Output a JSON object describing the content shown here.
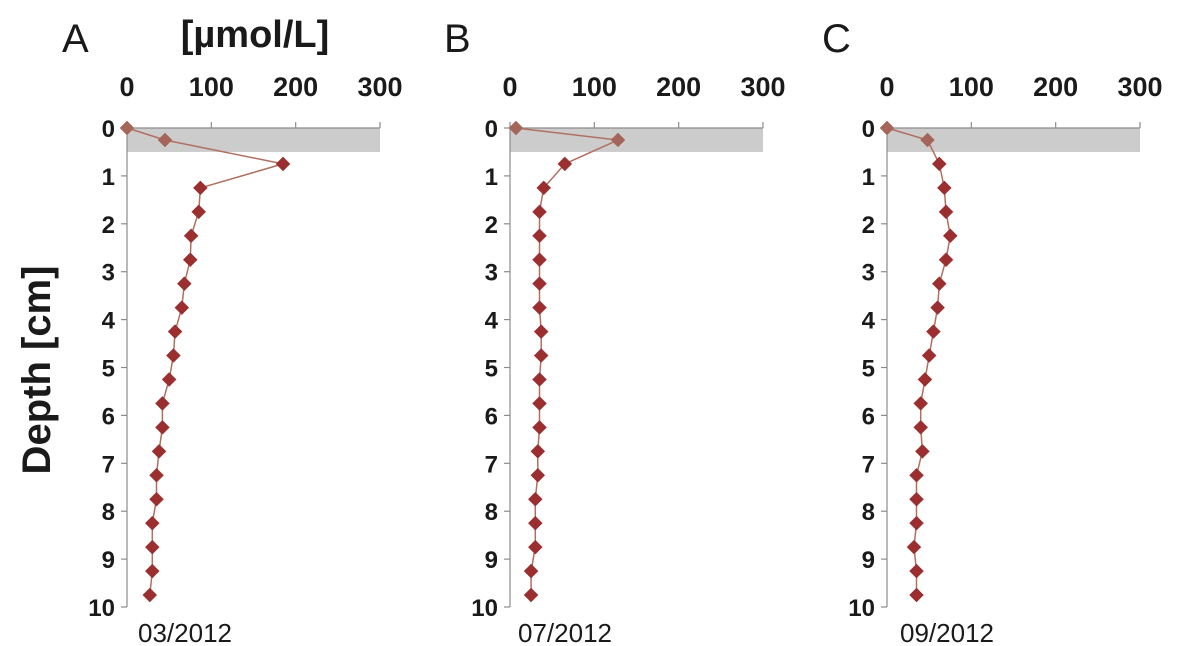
{
  "figure": {
    "unit_label": "[µmol/L]",
    "y_title": "Depth [cm]"
  },
  "colors": {
    "series": "#9b2f2f",
    "series_light": "#b07060",
    "marker_overlay": "#a6655a",
    "shade": "#cccccc",
    "axis": "#8c8c8c"
  },
  "chart_data": [
    {
      "type": "line",
      "panel": "A",
      "date": "03/2012",
      "xlabel": "[µmol/L]",
      "ylabel": "Depth [cm]",
      "x_axis_position": "top",
      "y_axis_inverted": true,
      "xlim": [
        0,
        300
      ],
      "ylim": [
        0,
        10
      ],
      "x_ticks": [
        "0",
        "100",
        "200",
        "300"
      ],
      "y_ticks": [
        "0",
        "1",
        "2",
        "3",
        "4",
        "5",
        "6",
        "7",
        "8",
        "9",
        "10"
      ],
      "shaded_depth_range": [
        0,
        0.5
      ],
      "points": [
        {
          "depth": 0,
          "value": 0
        },
        {
          "depth": 0.25,
          "value": 45
        },
        {
          "depth": 0.75,
          "value": 185
        },
        {
          "depth": 1.25,
          "value": 87
        },
        {
          "depth": 1.75,
          "value": 85
        },
        {
          "depth": 2.25,
          "value": 76
        },
        {
          "depth": 2.75,
          "value": 75
        },
        {
          "depth": 3.25,
          "value": 68
        },
        {
          "depth": 3.75,
          "value": 65
        },
        {
          "depth": 4.25,
          "value": 57
        },
        {
          "depth": 4.75,
          "value": 55
        },
        {
          "depth": 5.25,
          "value": 50
        },
        {
          "depth": 5.75,
          "value": 42
        },
        {
          "depth": 6.25,
          "value": 42
        },
        {
          "depth": 6.75,
          "value": 38
        },
        {
          "depth": 7.25,
          "value": 35
        },
        {
          "depth": 7.75,
          "value": 35
        },
        {
          "depth": 8.25,
          "value": 30
        },
        {
          "depth": 8.75,
          "value": 30
        },
        {
          "depth": 9.25,
          "value": 30
        },
        {
          "depth": 9.75,
          "value": 27
        }
      ]
    },
    {
      "type": "line",
      "panel": "B",
      "date": "07/2012",
      "xlabel": "",
      "ylabel": "Depth [cm]",
      "x_axis_position": "top",
      "y_axis_inverted": true,
      "xlim": [
        0,
        300
      ],
      "ylim": [
        0,
        10
      ],
      "x_ticks": [
        "0",
        "100",
        "200",
        "300"
      ],
      "y_ticks": [
        "0",
        "1",
        "2",
        "3",
        "4",
        "5",
        "6",
        "7",
        "8",
        "9",
        "10"
      ],
      "shaded_depth_range": [
        0,
        0.5
      ],
      "points": [
        {
          "depth": 0,
          "value": 7
        },
        {
          "depth": 0.25,
          "value": 128
        },
        {
          "depth": 0.75,
          "value": 65
        },
        {
          "depth": 1.25,
          "value": 40
        },
        {
          "depth": 1.75,
          "value": 35
        },
        {
          "depth": 2.25,
          "value": 35
        },
        {
          "depth": 2.75,
          "value": 35
        },
        {
          "depth": 3.25,
          "value": 35
        },
        {
          "depth": 3.75,
          "value": 35
        },
        {
          "depth": 4.25,
          "value": 37
        },
        {
          "depth": 4.75,
          "value": 37
        },
        {
          "depth": 5.25,
          "value": 35
        },
        {
          "depth": 5.75,
          "value": 35
        },
        {
          "depth": 6.25,
          "value": 35
        },
        {
          "depth": 6.75,
          "value": 33
        },
        {
          "depth": 7.25,
          "value": 33
        },
        {
          "depth": 7.75,
          "value": 30
        },
        {
          "depth": 8.25,
          "value": 30
        },
        {
          "depth": 8.75,
          "value": 30
        },
        {
          "depth": 9.25,
          "value": 25
        },
        {
          "depth": 9.75,
          "value": 25
        }
      ]
    },
    {
      "type": "line",
      "panel": "C",
      "date": "09/2012",
      "xlabel": "",
      "ylabel": "Depth [cm]",
      "x_axis_position": "top",
      "y_axis_inverted": true,
      "xlim": [
        0,
        300
      ],
      "ylim": [
        0,
        10
      ],
      "x_ticks": [
        "0",
        "100",
        "200",
        "300"
      ],
      "y_ticks": [
        "0",
        "1",
        "2",
        "3",
        "4",
        "5",
        "6",
        "7",
        "8",
        "9",
        "10"
      ],
      "shaded_depth_range": [
        0,
        0.5
      ],
      "points": [
        {
          "depth": 0,
          "value": 0
        },
        {
          "depth": 0.25,
          "value": 48
        },
        {
          "depth": 0.75,
          "value": 62
        },
        {
          "depth": 1.25,
          "value": 68
        },
        {
          "depth": 1.75,
          "value": 70
        },
        {
          "depth": 2.25,
          "value": 75
        },
        {
          "depth": 2.75,
          "value": 70
        },
        {
          "depth": 3.25,
          "value": 62
        },
        {
          "depth": 3.75,
          "value": 60
        },
        {
          "depth": 4.25,
          "value": 55
        },
        {
          "depth": 4.75,
          "value": 50
        },
        {
          "depth": 5.25,
          "value": 45
        },
        {
          "depth": 5.75,
          "value": 40
        },
        {
          "depth": 6.25,
          "value": 40
        },
        {
          "depth": 6.75,
          "value": 42
        },
        {
          "depth": 7.25,
          "value": 35
        },
        {
          "depth": 7.75,
          "value": 35
        },
        {
          "depth": 8.25,
          "value": 35
        },
        {
          "depth": 8.75,
          "value": 32
        },
        {
          "depth": 9.25,
          "value": 35
        },
        {
          "depth": 9.75,
          "value": 35
        }
      ]
    }
  ]
}
